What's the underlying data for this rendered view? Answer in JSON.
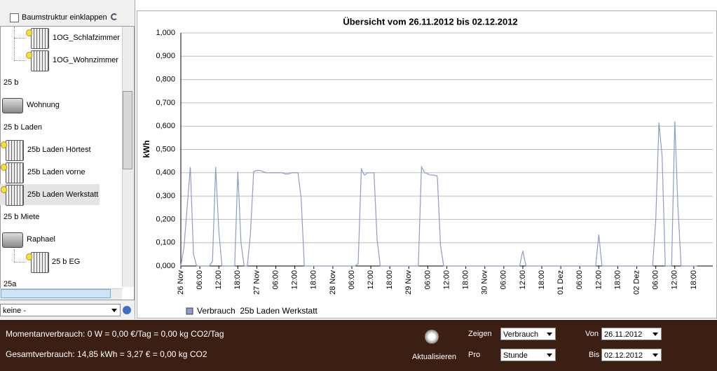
{
  "sidebar": {
    "collapse_label": "Baumstruktur einklappen",
    "tree": [
      "1OG_Schlafzimmer",
      "1OG_Wohnzimmer",
      "25 b",
      "Wohnung",
      "25 b Laden",
      "25b Laden Hörtest",
      "25b Laden vorne",
      "25b Laden Werkstatt",
      "25 b Miete",
      "Raphael",
      "25 b EG",
      "25a"
    ],
    "filter": "keine -"
  },
  "chart_data": {
    "type": "line",
    "title": "Übersicht vom 26.11.2012 bis 02.12.2012",
    "y_label": "kWh",
    "x": [
      0,
      1,
      3,
      4,
      5,
      9,
      10,
      11,
      12,
      13,
      17,
      18,
      19,
      20,
      21,
      22,
      23,
      24,
      25,
      26,
      27,
      28,
      29,
      30,
      31,
      32,
      33,
      34,
      35,
      36,
      37,
      38,
      39,
      55,
      56,
      57,
      58,
      59,
      60,
      61,
      62,
      63,
      75,
      76,
      77,
      78,
      79,
      80,
      81,
      82,
      83,
      107,
      108,
      109,
      131,
      132,
      133,
      149,
      150,
      151,
      152,
      153,
      155,
      156,
      157,
      158,
      163
    ],
    "series": [
      {
        "name": "Verbrauch  25b Laden Werkstatt",
        "color": "#8e9bc9",
        "values": [
          0,
          0.08,
          0.425,
          0.05,
          0,
          0,
          0.02,
          0.425,
          0.15,
          0,
          0,
          0.405,
          0.1,
          0,
          0,
          0.14,
          0.405,
          0.41,
          0.41,
          0.405,
          0.4,
          0.4,
          0.4,
          0.4,
          0.4,
          0.4,
          0.395,
          0.395,
          0.4,
          0.4,
          0.4,
          0.29,
          0,
          0,
          0.01,
          0.415,
          0.39,
          0.4,
          0.4,
          0.4,
          0.11,
          0,
          0,
          0.425,
          0.4,
          0.395,
          0.39,
          0.39,
          0.385,
          0.09,
          0,
          0,
          0.065,
          0,
          0,
          0.135,
          0,
          0,
          0.2,
          0.615,
          0.47,
          0,
          0,
          0.62,
          0.25,
          0,
          0
        ]
      }
    ],
    "xlim": [
      0,
      168
    ],
    "xticks": [
      {
        "value": 0,
        "label": "26 Nov"
      },
      {
        "value": 6,
        "label": "06:00"
      },
      {
        "value": 12,
        "label": "12:00"
      },
      {
        "value": 18,
        "label": "18:00"
      },
      {
        "value": 24,
        "label": "27 Nov"
      },
      {
        "value": 30,
        "label": "06:00"
      },
      {
        "value": 36,
        "label": "12:00"
      },
      {
        "value": 42,
        "label": "18:00"
      },
      {
        "value": 48,
        "label": "28 Nov"
      },
      {
        "value": 54,
        "label": "06:00"
      },
      {
        "value": 60,
        "label": "12:00"
      },
      {
        "value": 66,
        "label": "18:00"
      },
      {
        "value": 72,
        "label": "29 Nov"
      },
      {
        "value": 78,
        "label": "06:00"
      },
      {
        "value": 84,
        "label": "12:00"
      },
      {
        "value": 90,
        "label": "18:00"
      },
      {
        "value": 96,
        "label": "30 Nov"
      },
      {
        "value": 102,
        "label": "06:00"
      },
      {
        "value": 108,
        "label": "12:00"
      },
      {
        "value": 114,
        "label": "18:00"
      },
      {
        "value": 120,
        "label": "01 Dez"
      },
      {
        "value": 126,
        "label": "06:00"
      },
      {
        "value": 132,
        "label": "12:00"
      },
      {
        "value": 138,
        "label": "18:00"
      },
      {
        "value": 144,
        "label": "02 Dez"
      },
      {
        "value": 150,
        "label": "06:00"
      },
      {
        "value": 156,
        "label": "12:00"
      },
      {
        "value": 162,
        "label": "18:00"
      }
    ],
    "ylim": [
      0,
      1
    ],
    "yticks": [
      {
        "value": 0,
        "label": "0,000"
      },
      {
        "value": 0.1,
        "label": "0,100"
      },
      {
        "value": 0.2,
        "label": "0,200"
      },
      {
        "value": 0.3,
        "label": "0,300"
      },
      {
        "value": 0.4,
        "label": "0,400"
      },
      {
        "value": 0.5,
        "label": "0,500"
      },
      {
        "value": 0.6,
        "label": "0,600"
      },
      {
        "value": 0.7,
        "label": "0,700"
      },
      {
        "value": 0.8,
        "label": "0,800"
      },
      {
        "value": 0.9,
        "label": "0,900"
      },
      {
        "value": 1,
        "label": "1,000"
      }
    ],
    "grid": true
  },
  "footer": {
    "current": "Momentanverbrauch: 0 W = 0,00 €/Tag = 0,00 kg CO2/Tag",
    "total": "Gesamtverbrauch: 14,85 kWh = 3,27 € = 0,00 kg CO2",
    "refresh": "Aktualisieren",
    "show_label": "Zeigen",
    "show_value": "Verbrauch",
    "per_label": "Pro",
    "per_value": "Stunde",
    "from_label": "Von",
    "from_value": "26.11.2012",
    "to_label": "Bis",
    "to_value": "02.12.2012"
  }
}
